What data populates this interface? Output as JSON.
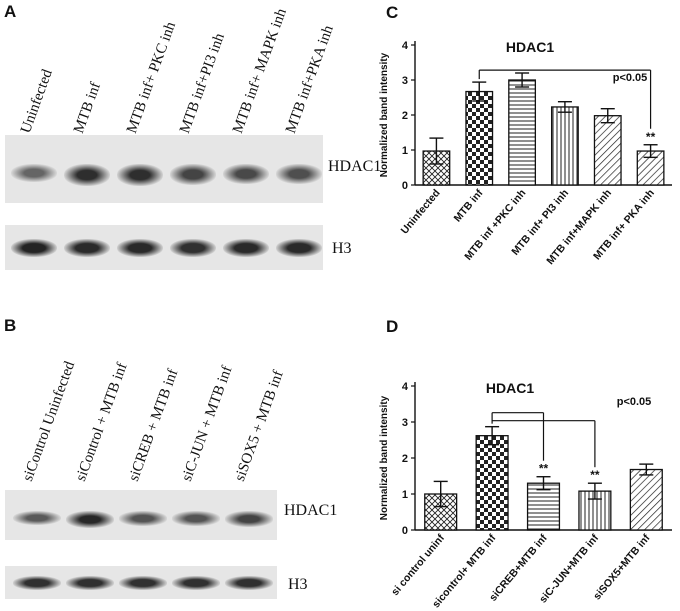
{
  "panels": {
    "A": {
      "label": "A",
      "lanes": [
        "Uninfected",
        "MTB inf",
        "MTB inf+ PKC inh",
        "MTB inf+PI3 inh",
        "MTB inf+ MAPK inh",
        "MTB inf+PKA inh"
      ],
      "hdac1_label": "HDAC1",
      "h3_label": "H3",
      "hdac1_band_intensity": [
        0.45,
        0.95,
        0.95,
        0.75,
        0.7,
        0.65
      ],
      "h3_band_intensity": [
        0.95,
        0.9,
        0.9,
        0.85,
        0.9,
        0.9
      ]
    },
    "B": {
      "label": "B",
      "lanes": [
        "siControl Uninfected",
        "siControl + MTB inf",
        "siCREB + MTB inf",
        "siC-JUN + MTB inf",
        "siSOX5 + MTB inf"
      ],
      "hdac1_label": "HDAC1",
      "h3_label": "H3",
      "hdac1_band_intensity": [
        0.55,
        1.0,
        0.6,
        0.6,
        0.75
      ],
      "h3_band_intensity": [
        0.85,
        0.85,
        0.85,
        0.85,
        0.85
      ]
    },
    "C": {
      "label": "C"
    },
    "D": {
      "label": "D"
    }
  },
  "chart_data": [
    {
      "type": "bar",
      "panel": "C",
      "title": "HDAC1",
      "ylabel": "Normalized band intensity",
      "xlabel": "",
      "categories": [
        "Uninfected",
        "MTB inf",
        "MTB inf +PKC inh",
        "MTB inf+ PI3 inh",
        "MTB inf+MAPK inh",
        "MTB inf+ PKA inh"
      ],
      "values": [
        0.97,
        2.67,
        3.0,
        2.23,
        1.98,
        0.97
      ],
      "errors": [
        0.37,
        0.27,
        0.2,
        0.15,
        0.2,
        0.18
      ],
      "patterns": [
        "crosshatch",
        "checker",
        "horizontal",
        "vertical",
        "diagonal",
        "diagonal"
      ],
      "ylim": [
        0,
        4
      ],
      "yticks": [
        0,
        1,
        2,
        3,
        4
      ],
      "annotations": {
        "pvalue": "p<0.05",
        "significance": "**"
      },
      "significant_index": 5,
      "bracket_from": 1,
      "bracket_to": [
        5
      ]
    },
    {
      "type": "bar",
      "panel": "D",
      "title": "HDAC1",
      "ylabel": "Normalized band intensity",
      "xlabel": "",
      "categories": [
        "si control uninf",
        "sicontrol+ MTB inf",
        "siCREB+MTB inf",
        "siC-JUN+MTB inf",
        "siSOX5+MTB inf"
      ],
      "values": [
        1.0,
        2.62,
        1.3,
        1.08,
        1.68
      ],
      "errors": [
        0.35,
        0.25,
        0.18,
        0.22,
        0.15
      ],
      "patterns": [
        "crosshatch",
        "checker",
        "horizontal",
        "vertical",
        "diagonal"
      ],
      "ylim": [
        0,
        4
      ],
      "yticks": [
        0,
        1,
        2,
        3,
        4
      ],
      "annotations": {
        "pvalue": "p<0.05",
        "significance": "**"
      },
      "significant_indices": [
        2,
        3
      ],
      "bracket_from": 1,
      "bracket_to": [
        2,
        3
      ]
    }
  ]
}
